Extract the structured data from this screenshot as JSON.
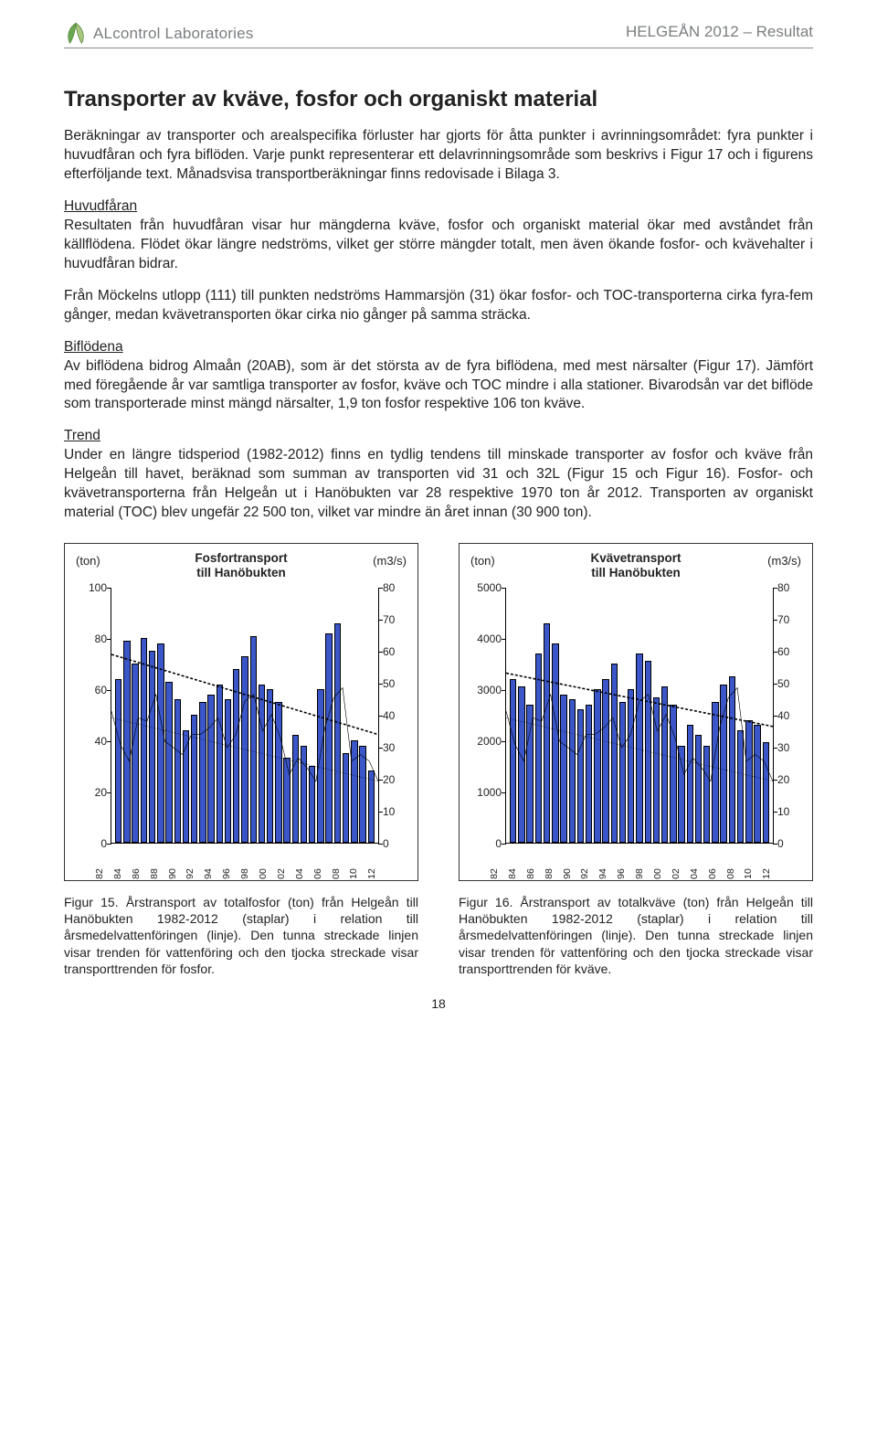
{
  "header": {
    "company": "ALcontrol Laboratories",
    "docref": "HELGEÅN 2012 – Resultat",
    "logo_colors": {
      "top": "#6aa84f",
      "bottom": "#a7c77f",
      "stroke": "#4b7a31"
    }
  },
  "title": "Transporter av kväve, fosfor och organiskt material",
  "p1": "Beräkningar av transporter och arealspecifika förluster har gjorts för åtta punkter i avrinningsområdet: fyra punkter i huvudfåran och fyra biflöden. Varje punkt representerar ett delavrinningsområde som beskrivs i Figur 17 och i figurens efterföljande text. Månadsvisa transportberäkningar finns redovisade i Bilaga 3.",
  "sec_huvud": "Huvudfåran",
  "p2": "Resultaten från huvudfåran visar hur mängderna kväve, fosfor och organiskt material ökar med avståndet från källflödena. Flödet ökar längre nedströms, vilket ger större mängder totalt, men även ökande fosfor- och kvävehalter i huvudfåran bidrar.",
  "p3": "Från Möckelns utlopp (111) till punkten nedströms Hammarsjön (31) ökar fosfor- och TOC-transporterna cirka fyra-fem gånger, medan kvävetransporten ökar cirka nio gånger på samma sträcka.",
  "sec_bi": "Biflödena",
  "p4": "Av biflödena bidrog Almaån (20AB), som är det största av de fyra biflödena, med mest närsalter (Figur 17). Jämfört med föregående år var samtliga transporter av fosfor, kväve och TOC mindre i alla stationer. Bivarodsån var det biflöde som transporterade minst mängd närsalter, 1,9 ton fosfor respektive 106 ton kväve.",
  "sec_trend": "Trend",
  "p5": "Under en längre tidsperiod (1982-2012) finns en tydlig tendens till minskade transporter av fosfor och kväve från Helgeån till havet, beräknad som summan av transporten vid 31 och 32L (Figur 15 och Figur 16). Fosfor- och kvävetransporterna från Helgeån ut i Hanöbukten var 28 respektive 1970 ton år 2012. Transporten av organiskt material (TOC) blev ungefär 22 500 ton, vilket var mindre än året innan (30 900 ton).",
  "charts": {
    "x_labels": [
      "82",
      "84",
      "86",
      "88",
      "90",
      "92",
      "94",
      "96",
      "98",
      "00",
      "02",
      "04",
      "06",
      "08",
      "10",
      "12"
    ],
    "bar_color": "#3a56c9",
    "bar_border": "#000000",
    "right_axis": {
      "max": 80,
      "ticks": [
        0,
        10,
        20,
        30,
        40,
        50,
        60,
        70,
        80
      ],
      "unit": "(m3/s)"
    },
    "left": {
      "title_l1": "Fosfortransport",
      "title_l2": "till Hanöbukten",
      "unit_left": "(ton)",
      "y_max": 100,
      "y_ticks": [
        0,
        20,
        40,
        60,
        80,
        100
      ],
      "bars": [
        64,
        79,
        70,
        80,
        75,
        78,
        63,
        56,
        44,
        50,
        55,
        58,
        62,
        56,
        68,
        73,
        81,
        62,
        60,
        55,
        33,
        42,
        38,
        30,
        60,
        82,
        86,
        35,
        40,
        38,
        28
      ],
      "flow_line": [
        43,
        33,
        28,
        41,
        40,
        48,
        34,
        32,
        30,
        36,
        36,
        38,
        41,
        32,
        36,
        46,
        48,
        37,
        42,
        35,
        24,
        29,
        26,
        22,
        38,
        47,
        50,
        28,
        30,
        28,
        22
      ],
      "trend_flow": [
        [
          0,
          41
        ],
        [
          1,
          22
        ]
      ],
      "trend_trans": [
        [
          0,
          75
        ],
        [
          1,
          45
        ]
      ]
    },
    "right": {
      "title_l1": "Kvävetransport",
      "title_l2": "till Hanöbukten",
      "unit_left": "(ton)",
      "y_max": 5000,
      "y_ticks": [
        0,
        1000,
        2000,
        3000,
        4000,
        5000
      ],
      "bars": [
        3200,
        3050,
        2700,
        3700,
        4300,
        3900,
        2900,
        2800,
        2600,
        2700,
        3000,
        3200,
        3500,
        2750,
        3000,
        3700,
        3550,
        2850,
        3050,
        2700,
        1900,
        2300,
        2100,
        1900,
        2750,
        3100,
        3250,
        2200,
        2400,
        2300,
        1970
      ],
      "flow_line": [
        43,
        33,
        28,
        41,
        40,
        48,
        34,
        32,
        30,
        36,
        36,
        38,
        41,
        32,
        36,
        46,
        48,
        37,
        42,
        35,
        24,
        29,
        26,
        22,
        38,
        47,
        50,
        28,
        30,
        28,
        22
      ],
      "trend_flow": [
        [
          0,
          41
        ],
        [
          1,
          22
        ]
      ],
      "trend_trans": [
        [
          0,
          3400
        ],
        [
          1,
          2400
        ]
      ]
    }
  },
  "caption_left": "Figur 15. Årstransport av totalfosfor (ton) från Helgeån till Hanöbukten 1982-2012 (staplar) i relation till årsmedelvattenföringen (linje). Den tunna streckade linjen visar trenden för vattenföring och den tjocka streckade visar transporttrenden för fosfor.",
  "caption_right": "Figur 16. Årstransport av totalkväve (ton) från Helgeån till Hanöbukten 1982-2012 (staplar) i relation till årsmedelvattenföringen (linje). Den tunna streckade linjen visar trenden för vattenföring och den tjocka streckade visar transporttrenden för kväve.",
  "pagenum": "18"
}
